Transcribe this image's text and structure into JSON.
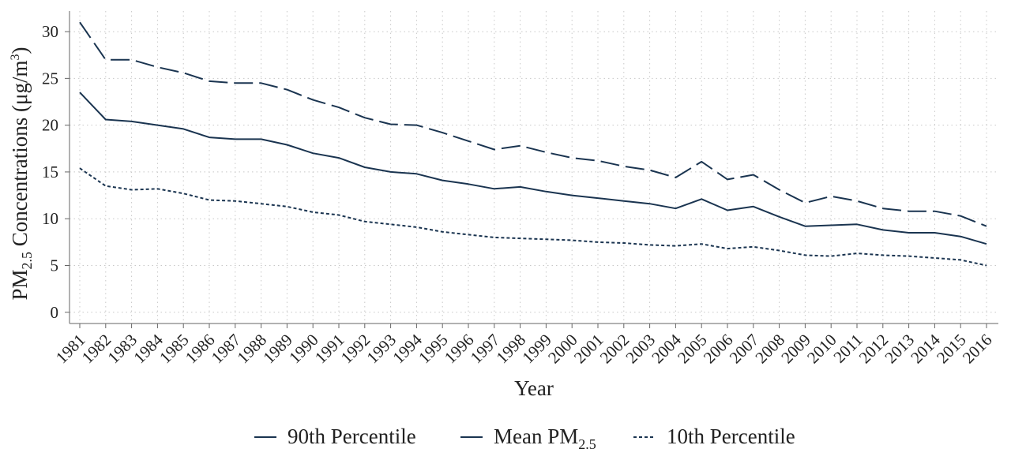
{
  "chart_data": {
    "type": "line",
    "x": [
      "1981",
      "1982",
      "1983",
      "1984",
      "1985",
      "1986",
      "1987",
      "1988",
      "1989",
      "1990",
      "1991",
      "1992",
      "1993",
      "1994",
      "1995",
      "1996",
      "1997",
      "1998",
      "1999",
      "2000",
      "2001",
      "2002",
      "2003",
      "2004",
      "2005",
      "2006",
      "2007",
      "2008",
      "2009",
      "2010",
      "2011",
      "2012",
      "2013",
      "2014",
      "2015",
      "2016"
    ],
    "series": [
      {
        "name": "90th Percentile",
        "style": "long-dash",
        "values": [
          31.0,
          27.0,
          27.0,
          26.2,
          25.6,
          24.7,
          24.5,
          24.5,
          23.8,
          22.7,
          21.9,
          20.8,
          20.1,
          20.0,
          19.2,
          18.3,
          17.4,
          17.8,
          17.1,
          16.5,
          16.2,
          15.6,
          15.2,
          14.4,
          16.1,
          14.2,
          14.7,
          13.1,
          11.7,
          12.4,
          11.9,
          11.1,
          10.8,
          10.8,
          10.3,
          9.2
        ]
      },
      {
        "name": "Mean PM2.5",
        "style": "solid",
        "values": [
          23.5,
          20.6,
          20.4,
          20.0,
          19.6,
          18.7,
          18.5,
          18.5,
          17.9,
          17.0,
          16.5,
          15.5,
          15.0,
          14.8,
          14.1,
          13.7,
          13.2,
          13.4,
          12.9,
          12.5,
          12.2,
          11.9,
          11.6,
          11.1,
          12.1,
          10.9,
          11.3,
          10.2,
          9.2,
          9.3,
          9.4,
          8.8,
          8.5,
          8.5,
          8.1,
          7.3
        ]
      },
      {
        "name": "10th Percentile",
        "style": "short-dash",
        "values": [
          15.4,
          13.5,
          13.1,
          13.2,
          12.7,
          12.0,
          11.9,
          11.6,
          11.3,
          10.7,
          10.4,
          9.7,
          9.4,
          9.1,
          8.6,
          8.3,
          8.0,
          7.9,
          7.8,
          7.7,
          7.5,
          7.4,
          7.2,
          7.1,
          7.3,
          6.8,
          7.0,
          6.6,
          6.1,
          6.0,
          6.3,
          6.1,
          6.0,
          5.8,
          5.6,
          5.0
        ]
      }
    ],
    "yticks": [
      0,
      5,
      10,
      15,
      20,
      25,
      30
    ],
    "ylim": [
      -1.2,
      32.2
    ],
    "xlabel": "Year",
    "ylabel": {
      "main": "PM",
      "sub": "2.5",
      "rest": " Concentrations (μg/m",
      "sup": "3",
      "end": ")"
    },
    "grid": true,
    "legend_position": "bottom",
    "legend": [
      {
        "label": "90th Percentile"
      },
      {
        "label": "Mean PM",
        "sub": "2.5"
      },
      {
        "label": "10th Percentile"
      }
    ],
    "colors": {
      "line": "#1a3450",
      "grid": "#c8c8c8",
      "axis": "#666666",
      "text": "#222222"
    }
  }
}
